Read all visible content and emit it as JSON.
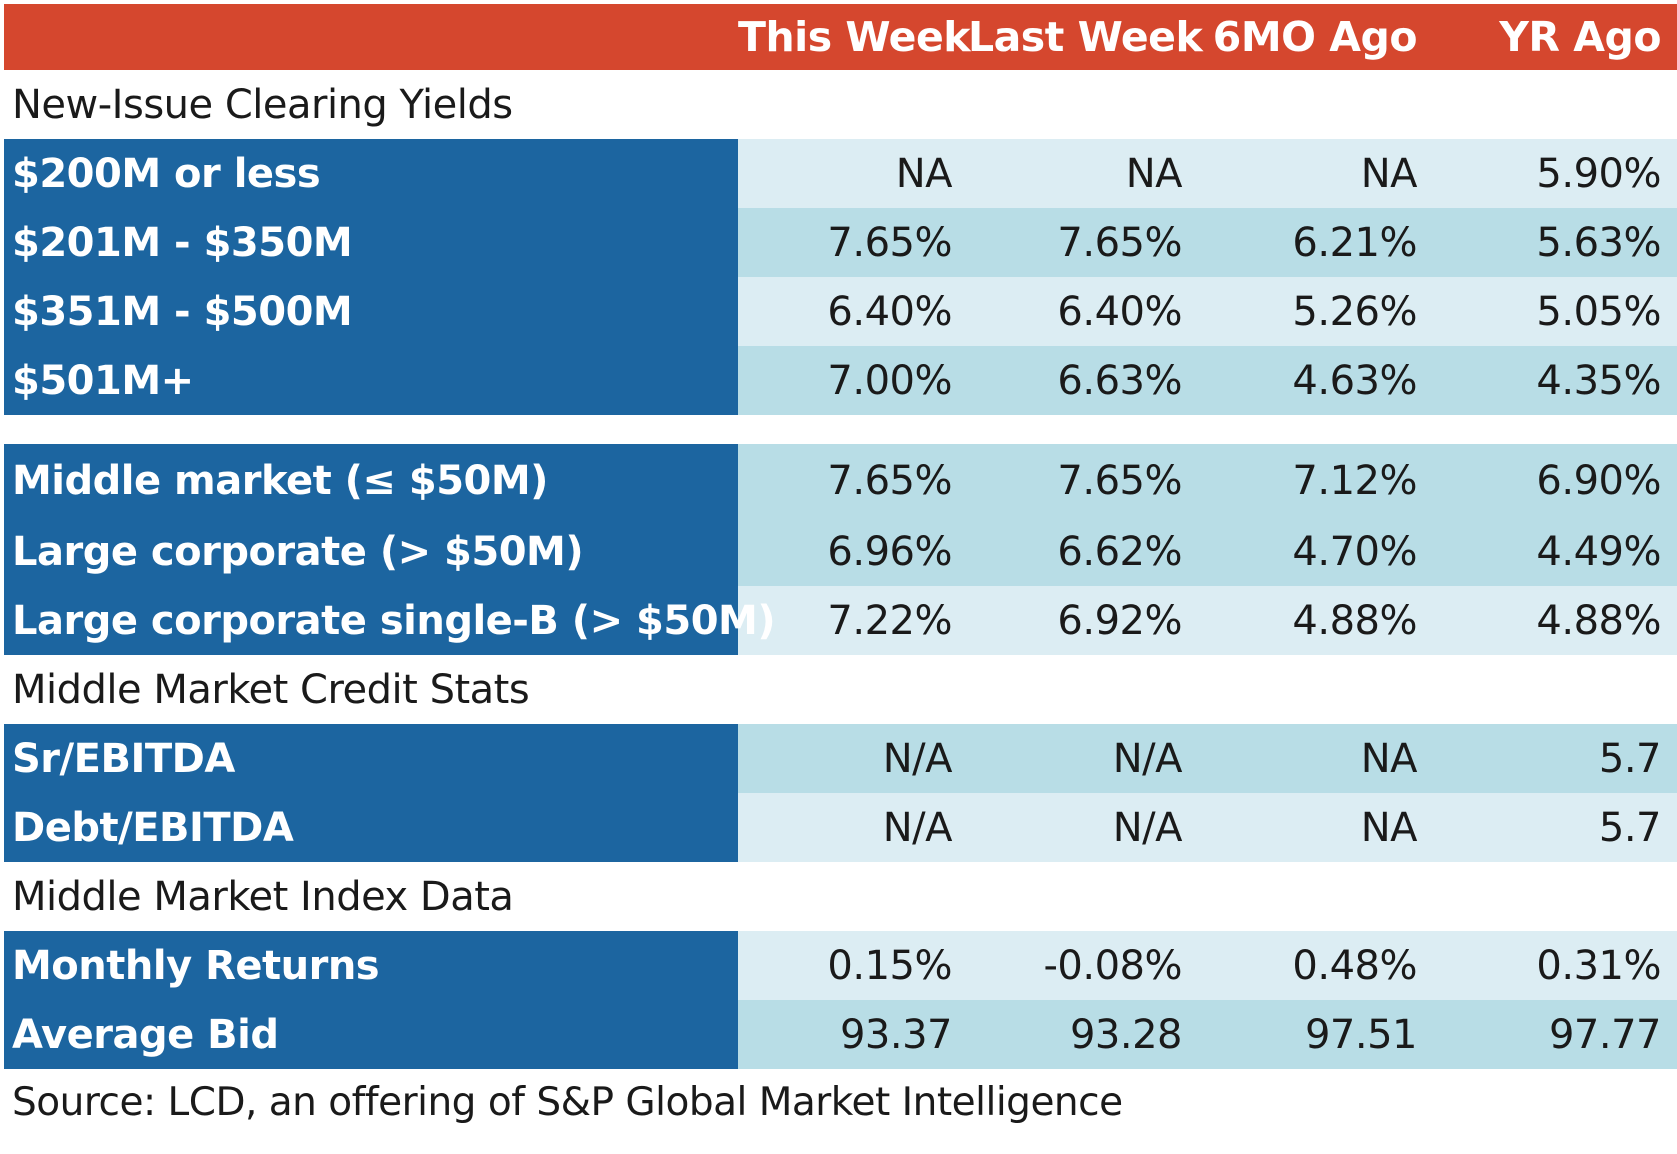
{
  "chart_data": {
    "type": "table",
    "columns": [
      "",
      "This Week",
      "Last Week",
      "6MO Ago",
      "YR Ago"
    ],
    "sections": [
      {
        "title": "New-Issue Clearing Yields",
        "rows": [
          {
            "label": "$200M or less",
            "values": [
              "NA",
              "NA",
              "NA",
              "5.90%"
            ]
          },
          {
            "label": "$201M - $350M",
            "values": [
              "7.65%",
              "7.65%",
              "6.21%",
              "5.63%"
            ]
          },
          {
            "label": "$351M - $500M",
            "values": [
              "6.40%",
              "6.40%",
              "5.26%",
              "5.05%"
            ]
          },
          {
            "label": "$501M+",
            "values": [
              "7.00%",
              "6.63%",
              "4.63%",
              "4.35%"
            ]
          }
        ]
      },
      {
        "title": "",
        "rows": [
          {
            "label": "Middle market (≤ $50M)",
            "values": [
              "7.65%",
              "7.65%",
              "7.12%",
              "6.90%"
            ]
          },
          {
            "label": "Large corporate (> $50M)",
            "values": [
              "6.96%",
              "6.62%",
              "4.70%",
              "4.49%"
            ]
          },
          {
            "label": "Large corporate single-B (> $50M)",
            "values": [
              "7.22%",
              "6.92%",
              "4.88%",
              "4.88%"
            ]
          }
        ]
      },
      {
        "title": "Middle Market Credit Stats",
        "rows": [
          {
            "label": "Sr/EBITDA",
            "values": [
              "N/A",
              "N/A",
              "NA",
              "5.7"
            ]
          },
          {
            "label": "Debt/EBITDA",
            "values": [
              "N/A",
              "N/A",
              "NA",
              "5.7"
            ]
          }
        ]
      },
      {
        "title": "Middle Market Index Data",
        "rows": [
          {
            "label": "Monthly Returns",
            "values": [
              "0.15%",
              "-0.08%",
              "0.48%",
              "0.31%"
            ]
          },
          {
            "label": "Average Bid",
            "values": [
              "93.37",
              "93.28",
              "97.51",
              "97.77"
            ]
          }
        ]
      }
    ],
    "source": "Source: LCD, an offering of S&P Global Market Intelligence"
  },
  "colors": {
    "header_bg": "#d5472e",
    "label_bg": "#1c65a0",
    "row_light": "#dcedf3",
    "row_mid": "#b8dde6"
  }
}
